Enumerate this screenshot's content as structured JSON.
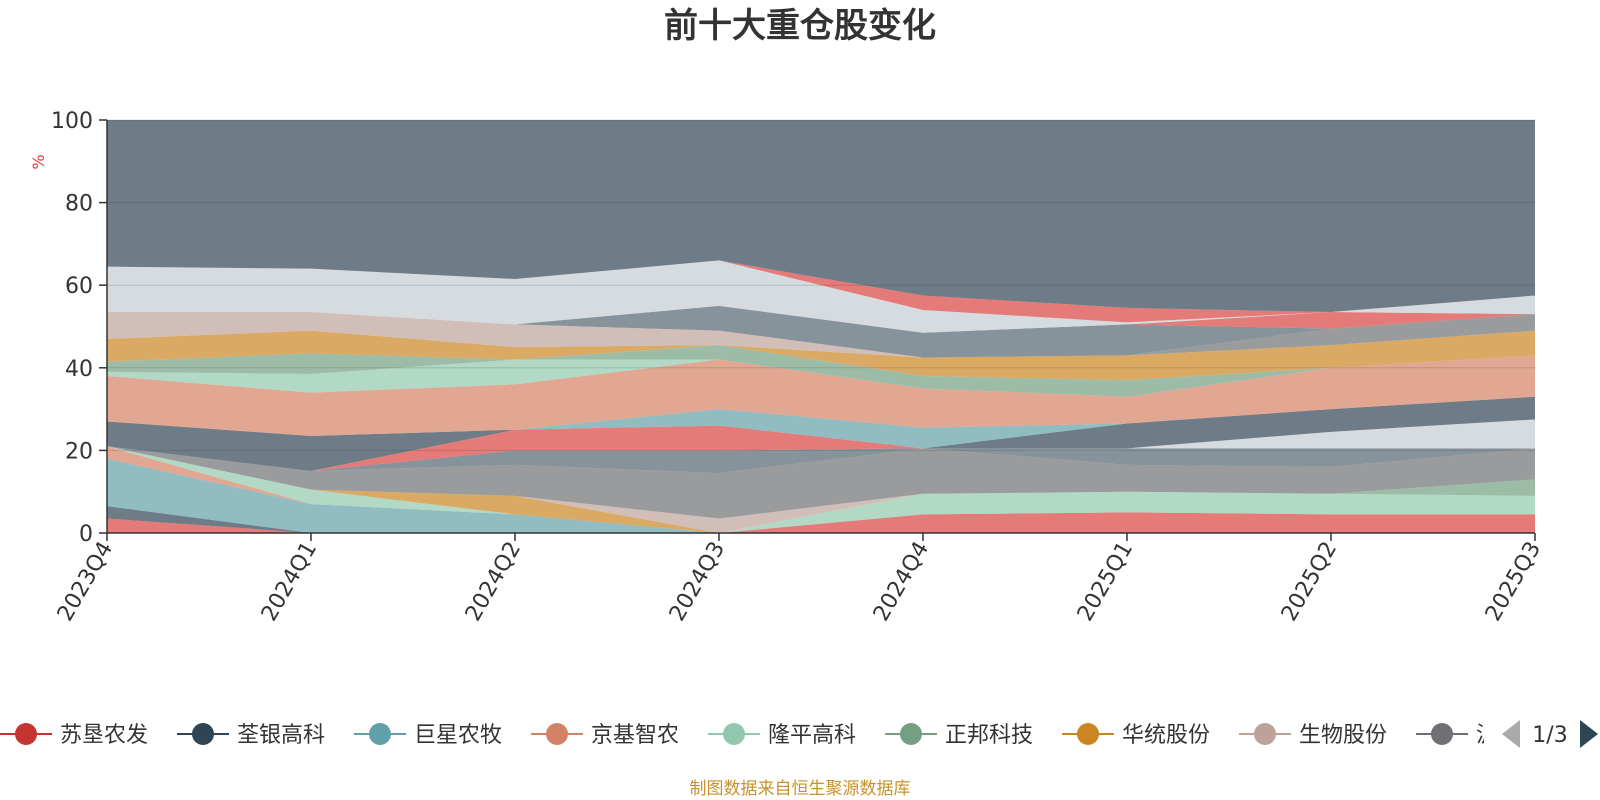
{
  "chart_data": {
    "type": "area",
    "title": "前十大重仓股变化",
    "ylabel": "%",
    "ylim": [
      0,
      100
    ],
    "yticks": [
      0,
      20,
      40,
      60,
      80,
      100
    ],
    "categories": [
      "2023Q4",
      "2024Q1",
      "2024Q2",
      "2024Q3",
      "2024Q4",
      "2025Q1",
      "2025Q2",
      "2025Q3"
    ],
    "grid": true,
    "legend_position": "bottom",
    "series": [
      {
        "name": "苏垦农发",
        "color": "#d9433f",
        "lower": [
          0,
          0,
          0,
          0,
          0,
          0,
          0,
          0
        ],
        "upper": [
          3.5,
          0,
          0,
          0,
          4.5,
          5,
          4.5,
          4.5
        ]
      },
      {
        "name": "荃银高科",
        "color": "#2f4554",
        "lower": [
          3.5,
          0,
          0,
          0,
          4.5,
          5,
          4.5,
          4.5
        ],
        "upper": [
          6.5,
          0,
          0,
          0,
          4.5,
          5,
          4.5,
          4.5
        ]
      },
      {
        "name": "巨星农牧",
        "color": "#61a0a8",
        "lower": [
          6.5,
          0,
          0,
          0,
          4.5,
          5,
          4.5,
          4.5
        ],
        "upper": [
          18,
          7,
          4.5,
          0,
          4.5,
          5,
          4.5,
          4.5
        ]
      },
      {
        "name": "京基智农",
        "color": "#d48265",
        "lower": [
          18,
          7,
          4.5,
          0,
          4.5,
          5,
          4.5,
          4.5
        ],
        "upper": [
          21,
          7,
          4.5,
          0,
          4.5,
          5,
          4.5,
          4.5
        ]
      },
      {
        "name": "隆平高科",
        "color": "#91c7ae",
        "lower": [
          21,
          7,
          4.5,
          0,
          4.5,
          5,
          4.5,
          4.5
        ],
        "upper": [
          21,
          10.5,
          4.5,
          0,
          9.5,
          10,
          9.5,
          9
        ]
      },
      {
        "name": "正邦科技",
        "color": "#749f83",
        "lower": [
          21,
          10.5,
          4.5,
          0,
          9.5,
          10,
          9.5,
          9
        ],
        "upper": [
          21,
          10.5,
          4.5,
          0,
          9.5,
          10,
          9.5,
          13
        ]
      },
      {
        "name": "华统股份",
        "color": "#ca8622",
        "lower": [
          21,
          10.5,
          4.5,
          0,
          9.5,
          10,
          9.5,
          13
        ],
        "upper": [
          21,
          10.5,
          9,
          0,
          9.5,
          10,
          9.5,
          13
        ]
      },
      {
        "name": "生物股份",
        "color": "#bda29a",
        "lower": [
          21,
          10.5,
          9,
          0,
          9.5,
          10,
          9.5,
          13
        ],
        "upper": [
          21,
          10.5,
          9,
          3.5,
          9.5,
          10,
          9.5,
          13
        ]
      },
      {
        "name": "",
        "color": "#6e7074",
        "lower": [
          21,
          10.5,
          9,
          3.5,
          9.5,
          10,
          9.5,
          13
        ],
        "upper": [
          21,
          15,
          16.5,
          14.5,
          20.5,
          16.5,
          16,
          20.5
        ]
      },
      {
        "name": "",
        "color": "#546570",
        "lower": [
          21,
          15,
          16.5,
          14.5,
          20.5,
          16.5,
          16,
          20.5
        ],
        "upper": [
          21,
          15,
          20,
          20,
          20.5,
          20.5,
          20.5,
          20.5
        ]
      },
      {
        "name": "",
        "color": "#d9433f",
        "lower": [
          21,
          15,
          20,
          20,
          20.5,
          20.5,
          20.5,
          20.5
        ],
        "upper": [
          21,
          15,
          25,
          26,
          20.5,
          20.5,
          20.5,
          20.5
        ]
      },
      {
        "name": "",
        "color": "#c4ccd3",
        "lower": [
          21,
          15,
          25,
          26,
          20.5,
          20.5,
          20.5,
          20.5
        ],
        "upper": [
          21,
          15,
          25,
          26,
          20.5,
          20.5,
          24.5,
          27.5
        ]
      },
      {
        "name": "",
        "color": "#2f4554",
        "lower": [
          21,
          15,
          25,
          26,
          20.5,
          20.5,
          24.5,
          27.5
        ],
        "upper": [
          27,
          23.5,
          25,
          26,
          20.5,
          26.5,
          30,
          33
        ]
      },
      {
        "name": "",
        "color": "#61a0a8",
        "lower": [
          27,
          23.5,
          25,
          26,
          20.5,
          26.5,
          30,
          33
        ],
        "upper": [
          27,
          23.5,
          25,
          30,
          25.5,
          26.5,
          30,
          33
        ]
      },
      {
        "name": "",
        "color": "#d48265",
        "lower": [
          27,
          23.5,
          25,
          30,
          25.5,
          26.5,
          30,
          33
        ],
        "upper": [
          38,
          34,
          36,
          42,
          35,
          33,
          40,
          43
        ]
      },
      {
        "name": "",
        "color": "#91c7ae",
        "lower": [
          38,
          34,
          36,
          42,
          35,
          33,
          40,
          43
        ],
        "upper": [
          39,
          38.5,
          42,
          42,
          35,
          33,
          40,
          43
        ]
      },
      {
        "name": "",
        "color": "#749f83",
        "lower": [
          39,
          38.5,
          42,
          42,
          35,
          33,
          40,
          43
        ],
        "upper": [
          41.5,
          43.5,
          42,
          45.5,
          38,
          37,
          40,
          43
        ]
      },
      {
        "name": "",
        "color": "#ca8622",
        "lower": [
          41.5,
          43.5,
          42,
          45.5,
          38,
          37,
          40,
          43
        ],
        "upper": [
          47,
          49,
          45,
          45.5,
          42.5,
          43,
          45.5,
          49
        ]
      },
      {
        "name": "",
        "color": "#bda29a",
        "lower": [
          47,
          49,
          45,
          45.5,
          42.5,
          43,
          45.5,
          49
        ],
        "upper": [
          53.5,
          53.5,
          50.5,
          49,
          42.5,
          43,
          45.5,
          49
        ]
      },
      {
        "name": "",
        "color": "#6e7074",
        "lower": [
          53.5,
          53.5,
          50.5,
          49,
          42.5,
          43,
          45.5,
          49
        ],
        "upper": [
          53.5,
          53.5,
          50.5,
          49,
          42.5,
          43,
          49.5,
          53
        ]
      },
      {
        "name": "",
        "color": "#546570",
        "lower": [
          53.5,
          53.5,
          50.5,
          49,
          42.5,
          43,
          49.5,
          53
        ],
        "upper": [
          53.5,
          53.5,
          50.5,
          55,
          48.5,
          50.5,
          49.5,
          53
        ]
      },
      {
        "name": "",
        "color": "#d9433f",
        "lower": [
          53.5,
          53.5,
          50.5,
          55,
          48.5,
          50.5,
          49.5,
          53
        ],
        "upper": [
          53.5,
          53.5,
          50.5,
          55,
          48.5,
          50.5,
          53.5,
          53
        ]
      },
      {
        "name": "",
        "color": "#c4ccd3",
        "lower": [
          53.5,
          53.5,
          50.5,
          55,
          48.5,
          50.5,
          53.5,
          53
        ],
        "upper": [
          64.5,
          64,
          61.5,
          66,
          54,
          51,
          53.5,
          57.5
        ]
      },
      {
        "name": "",
        "color": "#d9433f",
        "lower": [
          64.5,
          64,
          61.5,
          66,
          54,
          51,
          53.5,
          57.5
        ],
        "upper": [
          64.5,
          64,
          61.5,
          66,
          57.5,
          54.5,
          53.5,
          57.5
        ]
      },
      {
        "name": "",
        "color": "#2f4554",
        "lower": [
          64.5,
          64,
          61.5,
          66,
          57.5,
          54.5,
          53.5,
          57.5
        ],
        "upper": [
          100,
          100,
          100,
          100,
          100,
          100,
          100,
          100
        ]
      }
    ],
    "legend_truncated": "沪"
  },
  "legend": {
    "items": [
      {
        "label": "苏垦农发",
        "color": "#c23531"
      },
      {
        "label": "荃银高科",
        "color": "#2f4554"
      },
      {
        "label": "巨星农牧",
        "color": "#61a0a8"
      },
      {
        "label": "京基智农",
        "color": "#d48265"
      },
      {
        "label": "隆平高科",
        "color": "#91c7ae"
      },
      {
        "label": "正邦科技",
        "color": "#749f83"
      },
      {
        "label": "华统股份",
        "color": "#ca8622"
      },
      {
        "label": "生物股份",
        "color": "#bda29a"
      },
      {
        "label": "沪",
        "color": "#6e7074"
      }
    ],
    "page_indicator": "1/3",
    "prev_icon": "triangle-left-icon",
    "next_icon": "triangle-right-icon"
  },
  "source_note": "制图数据来自恒生聚源数据库"
}
